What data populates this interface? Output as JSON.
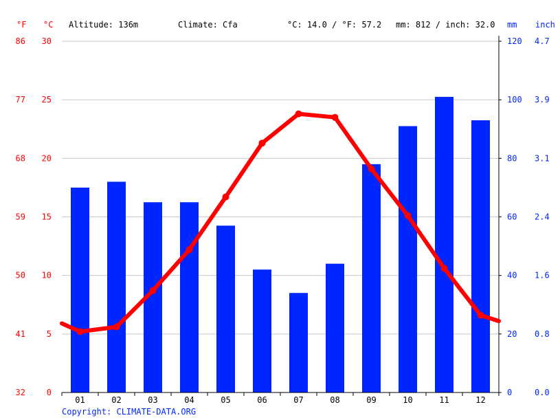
{
  "header": {
    "f_unit": "°F",
    "c_unit": "°C",
    "altitude": "Altitude: 136m",
    "climate": "Climate: Cfa",
    "temp_avg": "°C: 14.0 / °F: 57.2",
    "precip_total": "mm: 812 / inch: 32.0",
    "mm_unit": "mm",
    "inch_unit": "inch"
  },
  "copyright": "Copyright: CLIMATE-DATA.ORG",
  "colors": {
    "temperature": "#ff0000",
    "precipitation": "#0026ff",
    "grid": "#c8c8c8",
    "axis": "#000000"
  },
  "chart_data": {
    "type": "bar",
    "categories": [
      "01",
      "02",
      "03",
      "04",
      "05",
      "06",
      "07",
      "08",
      "09",
      "10",
      "11",
      "12"
    ],
    "series": [
      {
        "type": "bar",
        "axis": "right",
        "values": [
          70,
          72,
          65,
          65,
          57,
          42,
          34,
          44,
          78,
          91,
          101,
          93
        ]
      },
      {
        "type": "line",
        "axis": "left",
        "values": [
          5.2,
          5.6,
          8.7,
          12.2,
          16.7,
          21.3,
          23.8,
          23.5,
          19.1,
          15.1,
          10.6,
          6.6
        ],
        "edge_values": [
          5.9,
          6.1
        ]
      }
    ],
    "left_axis_c": {
      "ticks": [
        0,
        5,
        10,
        15,
        20,
        25,
        30
      ],
      "labels": [
        "0",
        "5",
        "10",
        "15",
        "20",
        "25",
        "30"
      ],
      "range": [
        0,
        30
      ]
    },
    "left_axis_f": {
      "labels": [
        "32",
        "41",
        "50",
        "59",
        "68",
        "77",
        "86"
      ]
    },
    "right_axis_mm": {
      "ticks": [
        0,
        20,
        40,
        60,
        80,
        100,
        120
      ],
      "labels": [
        "0",
        "20",
        "40",
        "60",
        "80",
        "100",
        "120"
      ],
      "range": [
        0,
        120
      ]
    },
    "right_axis_inch": {
      "labels": [
        "0.0",
        "0.8",
        "1.6",
        "2.4",
        "3.1",
        "3.9",
        "4.7"
      ]
    },
    "grid": true
  }
}
